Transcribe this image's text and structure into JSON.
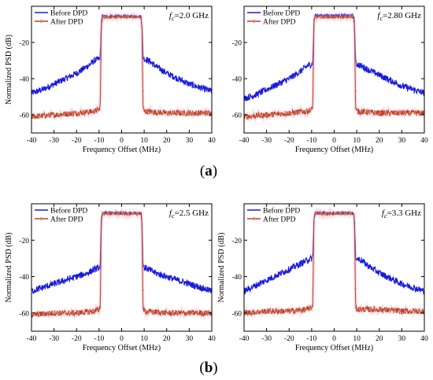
{
  "chart_data": [
    {
      "type": "line",
      "annotation": {
        "symbol": "f",
        "subscript": "c",
        "value": "=2.0 GHz"
      },
      "xlabel": "Frequency Offset (MHz)",
      "ylabel": "Normalized PSD (dB)",
      "xlim": [
        -40,
        40
      ],
      "ylim": [
        -70,
        0
      ],
      "xticks": [
        "-40",
        "-30",
        "-20",
        "-10",
        "0",
        "10",
        "20",
        "30",
        "40"
      ],
      "yticks": [
        "-20",
        "-40",
        "-60"
      ],
      "legend_position": "top-left",
      "series": [
        {
          "name": "Before DPD",
          "color": "#1a1adc",
          "x": [
            -40,
            -35,
            -30,
            -25,
            -20,
            -15,
            -12,
            -10,
            -9.5,
            -9,
            -8.6,
            8.6,
            9,
            9.5,
            10,
            12,
            15,
            20,
            25,
            30,
            35,
            40
          ],
          "y": [
            -48,
            -46,
            -43,
            -40,
            -37,
            -33,
            -30,
            -29,
            -28,
            -10,
            -5.5,
            -5.5,
            -10,
            -28,
            -29,
            -30,
            -33,
            -37,
            -40,
            -43,
            -45,
            -47
          ]
        },
        {
          "name": "After DPD",
          "color": "#c0392b",
          "x": [
            -40,
            -30,
            -20,
            -12,
            -10,
            -9.5,
            -9,
            -8.6,
            8.6,
            9,
            9.5,
            10,
            20,
            30,
            40
          ],
          "y": [
            -61,
            -60,
            -59,
            -58,
            -57,
            -55,
            -10,
            -6,
            -6,
            -10,
            -56,
            -58,
            -59,
            -59,
            -59
          ]
        }
      ]
    },
    {
      "type": "line",
      "annotation": {
        "symbol": "f",
        "subscript": "c",
        "value": "=2.80 GHz"
      },
      "xlabel": "Frequency Offset (MHz)",
      "ylabel": "",
      "xlim": [
        -40,
        40
      ],
      "ylim": [
        -70,
        0
      ],
      "xticks": [
        "-40",
        "-30",
        "-20",
        "-10",
        "0",
        "10",
        "20",
        "30",
        "40"
      ],
      "yticks": [
        "-20",
        "-40",
        "-60"
      ],
      "legend_position": "top-left",
      "series": [
        {
          "name": "Before DPD",
          "color": "#1a1adc",
          "x": [
            -40,
            -35,
            -30,
            -25,
            -20,
            -15,
            -12,
            -10,
            -9.5,
            -9,
            -8.6,
            8.6,
            9,
            9.5,
            10,
            12,
            15,
            20,
            25,
            30,
            35,
            40
          ],
          "y": [
            -51,
            -49,
            -46,
            -43,
            -40,
            -36,
            -33,
            -32,
            -31,
            -10,
            -5,
            -5,
            -10,
            -31,
            -32,
            -33,
            -35,
            -38,
            -41,
            -44,
            -46,
            -48
          ]
        },
        {
          "name": "After DPD",
          "color": "#c0392b",
          "x": [
            -40,
            -30,
            -20,
            -12,
            -10,
            -9.5,
            -9,
            -8.6,
            8.6,
            9,
            9.5,
            10,
            20,
            30,
            40
          ],
          "y": [
            -61,
            -60,
            -59,
            -58,
            -57,
            -55,
            -10,
            -6,
            -6,
            -10,
            -56,
            -58,
            -59,
            -59,
            -59
          ]
        }
      ]
    },
    {
      "type": "line",
      "annotation": {
        "symbol": "f",
        "subscript": "c",
        "value": "=2.5 GHz"
      },
      "xlabel": "Frequency Offset (MHz)",
      "ylabel": "Normalized PSD (dB)",
      "xlim": [
        -40,
        40
      ],
      "ylim": [
        -70,
        0
      ],
      "xticks": [
        "-40",
        "-30",
        "-20",
        "-10",
        "0",
        "10",
        "20",
        "30",
        "40"
      ],
      "yticks": [
        "-20",
        "-40",
        "-60"
      ],
      "legend_position": "top-left",
      "series": [
        {
          "name": "Before DPD",
          "color": "#1a1adc",
          "x": [
            -40,
            -35,
            -30,
            -25,
            -20,
            -15,
            -12,
            -10,
            -9.5,
            -9,
            -8.6,
            8.6,
            9,
            9.5,
            10,
            12,
            15,
            20,
            25,
            30,
            35,
            40
          ],
          "y": [
            -48,
            -46,
            -44,
            -42,
            -40,
            -38,
            -36,
            -35,
            -34,
            -10,
            -5,
            -5,
            -10,
            -34,
            -35,
            -36,
            -38,
            -40,
            -42,
            -44,
            -46,
            -48
          ]
        },
        {
          "name": "After DPD",
          "color": "#c0392b",
          "x": [
            -40,
            -30,
            -20,
            -12,
            -10,
            -9.5,
            -9,
            -8.6,
            8.6,
            9,
            9.5,
            10,
            20,
            30,
            40
          ],
          "y": [
            -61,
            -60,
            -60,
            -59,
            -58,
            -56,
            -10,
            -5.5,
            -5.5,
            -10,
            -57,
            -59,
            -60,
            -60,
            -60
          ]
        }
      ]
    },
    {
      "type": "line",
      "annotation": {
        "symbol": "f",
        "subscript": "c",
        "value": "=3.3 GHz"
      },
      "xlabel": "Frequency Offset (MHz)",
      "ylabel": "Normalized PSD (dB)",
      "xlim": [
        -40,
        40
      ],
      "ylim": [
        -70,
        0
      ],
      "xticks": [
        "-40",
        "-30",
        "-20",
        "-10",
        "0",
        "10",
        "20",
        "30",
        "40"
      ],
      "yticks": [
        "-20",
        "-40",
        "-60"
      ],
      "legend_position": "top-left",
      "series": [
        {
          "name": "Before DPD",
          "color": "#1a1adc",
          "x": [
            -40,
            -35,
            -30,
            -25,
            -20,
            -15,
            -12,
            -10,
            -9.5,
            -9,
            -8.6,
            8.6,
            9,
            9.5,
            10,
            12,
            15,
            20,
            25,
            30,
            35,
            40
          ],
          "y": [
            -48,
            -45,
            -42,
            -39,
            -36,
            -33,
            -31,
            -30,
            -29,
            -10,
            -5,
            -5,
            -10,
            -29,
            -30,
            -31,
            -34,
            -38,
            -41,
            -44,
            -46,
            -48
          ]
        },
        {
          "name": "After DPD",
          "color": "#c0392b",
          "x": [
            -40,
            -30,
            -20,
            -12,
            -10,
            -9.5,
            -9,
            -8.6,
            8.6,
            9,
            9.5,
            10,
            20,
            30,
            40
          ],
          "y": [
            -60,
            -59,
            -59,
            -58,
            -57,
            -55,
            -10,
            -5.5,
            -5.5,
            -10,
            -56,
            -58,
            -58,
            -59,
            -59
          ]
        }
      ]
    }
  ],
  "captions": {
    "a": "a",
    "b": "b"
  }
}
